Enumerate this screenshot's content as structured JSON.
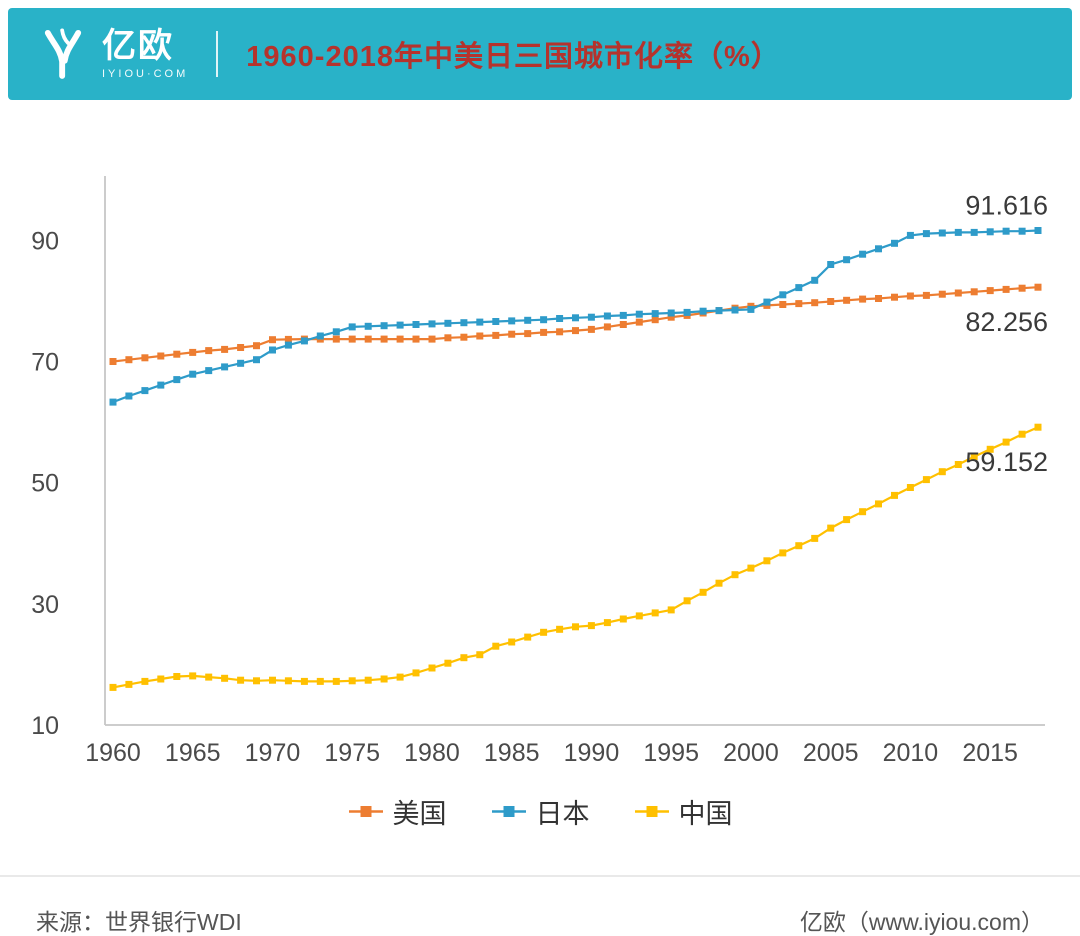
{
  "theme": {
    "banner_bg": "#29b2c8",
    "title_color": "#b5332d",
    "axis_color": "#c6c6c6",
    "tick_label_color": "#4a4a4a",
    "end_label_color": "#3a3a3a"
  },
  "header": {
    "brand_name": "亿欧",
    "brand_sub": "IYIOU·COM",
    "title": "1960-2018年中美日三国城市化率（%）"
  },
  "chart_data": {
    "type": "line",
    "title": "1960-2018年中美日三国城市化率（%）",
    "xlabel": "",
    "ylabel": "",
    "ylim": [
      10,
      95
    ],
    "y_ticks": [
      10,
      30,
      50,
      70,
      90
    ],
    "x_ticks": [
      1960,
      1965,
      1970,
      1975,
      1980,
      1985,
      1990,
      1995,
      2000,
      2005,
      2010,
      2015
    ],
    "grid": false,
    "legend_position": "bottom",
    "marker": "square",
    "x": [
      1960,
      1961,
      1962,
      1963,
      1964,
      1965,
      1966,
      1967,
      1968,
      1969,
      1970,
      1971,
      1972,
      1973,
      1974,
      1975,
      1976,
      1977,
      1978,
      1979,
      1980,
      1981,
      1982,
      1983,
      1984,
      1985,
      1986,
      1987,
      1988,
      1989,
      1990,
      1991,
      1992,
      1993,
      1994,
      1995,
      1996,
      1997,
      1998,
      1999,
      2000,
      2001,
      2002,
      2003,
      2004,
      2005,
      2006,
      2007,
      2008,
      2009,
      2010,
      2011,
      2012,
      2013,
      2014,
      2015,
      2016,
      2017,
      2018
    ],
    "series": [
      {
        "name": "美国",
        "color": "#ED7D31",
        "end_label": "82.256",
        "label_side": "below",
        "values": [
          70.0,
          70.3,
          70.6,
          70.9,
          71.2,
          71.5,
          71.8,
          72.0,
          72.3,
          72.6,
          73.6,
          73.65,
          73.7,
          73.7,
          73.7,
          73.7,
          73.7,
          73.7,
          73.7,
          73.7,
          73.7,
          73.9,
          74.0,
          74.2,
          74.3,
          74.5,
          74.6,
          74.8,
          74.9,
          75.1,
          75.3,
          75.7,
          76.1,
          76.5,
          76.9,
          77.3,
          77.6,
          78.0,
          78.4,
          78.8,
          79.1,
          79.25,
          79.4,
          79.55,
          79.7,
          79.9,
          80.1,
          80.3,
          80.4,
          80.6,
          80.8,
          80.9,
          81.1,
          81.3,
          81.5,
          81.7,
          81.9,
          82.1,
          82.256
        ]
      },
      {
        "name": "日本",
        "color": "#2E9BC9",
        "end_label": "91.616",
        "label_side": "above",
        "values": [
          63.3,
          64.3,
          65.2,
          66.1,
          67.0,
          67.9,
          68.5,
          69.1,
          69.7,
          70.3,
          71.9,
          72.7,
          73.4,
          74.2,
          74.9,
          75.7,
          75.8,
          75.9,
          76.0,
          76.1,
          76.2,
          76.3,
          76.4,
          76.5,
          76.6,
          76.7,
          76.8,
          76.9,
          77.1,
          77.2,
          77.3,
          77.5,
          77.6,
          77.8,
          77.9,
          78.0,
          78.1,
          78.3,
          78.4,
          78.5,
          78.6,
          79.8,
          81.0,
          82.2,
          83.4,
          86.0,
          86.8,
          87.7,
          88.6,
          89.5,
          90.8,
          91.1,
          91.2,
          91.3,
          91.3,
          91.4,
          91.5,
          91.5,
          91.616
        ]
      },
      {
        "name": "中国",
        "color": "#FFC000",
        "end_label": "59.152",
        "label_side": "below",
        "values": [
          16.2,
          16.7,
          17.2,
          17.6,
          18.0,
          18.1,
          17.9,
          17.7,
          17.4,
          17.3,
          17.4,
          17.3,
          17.2,
          17.2,
          17.2,
          17.3,
          17.4,
          17.6,
          17.9,
          18.6,
          19.4,
          20.2,
          21.1,
          21.6,
          23.0,
          23.7,
          24.5,
          25.3,
          25.8,
          26.2,
          26.4,
          26.9,
          27.5,
          28.0,
          28.5,
          29.0,
          30.5,
          31.9,
          33.4,
          34.8,
          35.9,
          37.1,
          38.4,
          39.6,
          40.8,
          42.5,
          43.9,
          45.2,
          46.5,
          47.9,
          49.2,
          50.5,
          51.8,
          53.0,
          54.3,
          55.5,
          56.7,
          58.0,
          59.152
        ]
      }
    ]
  },
  "footer": {
    "source": "来源：世界银行WDI",
    "credit": "亿欧（www.iyiou.com）"
  }
}
